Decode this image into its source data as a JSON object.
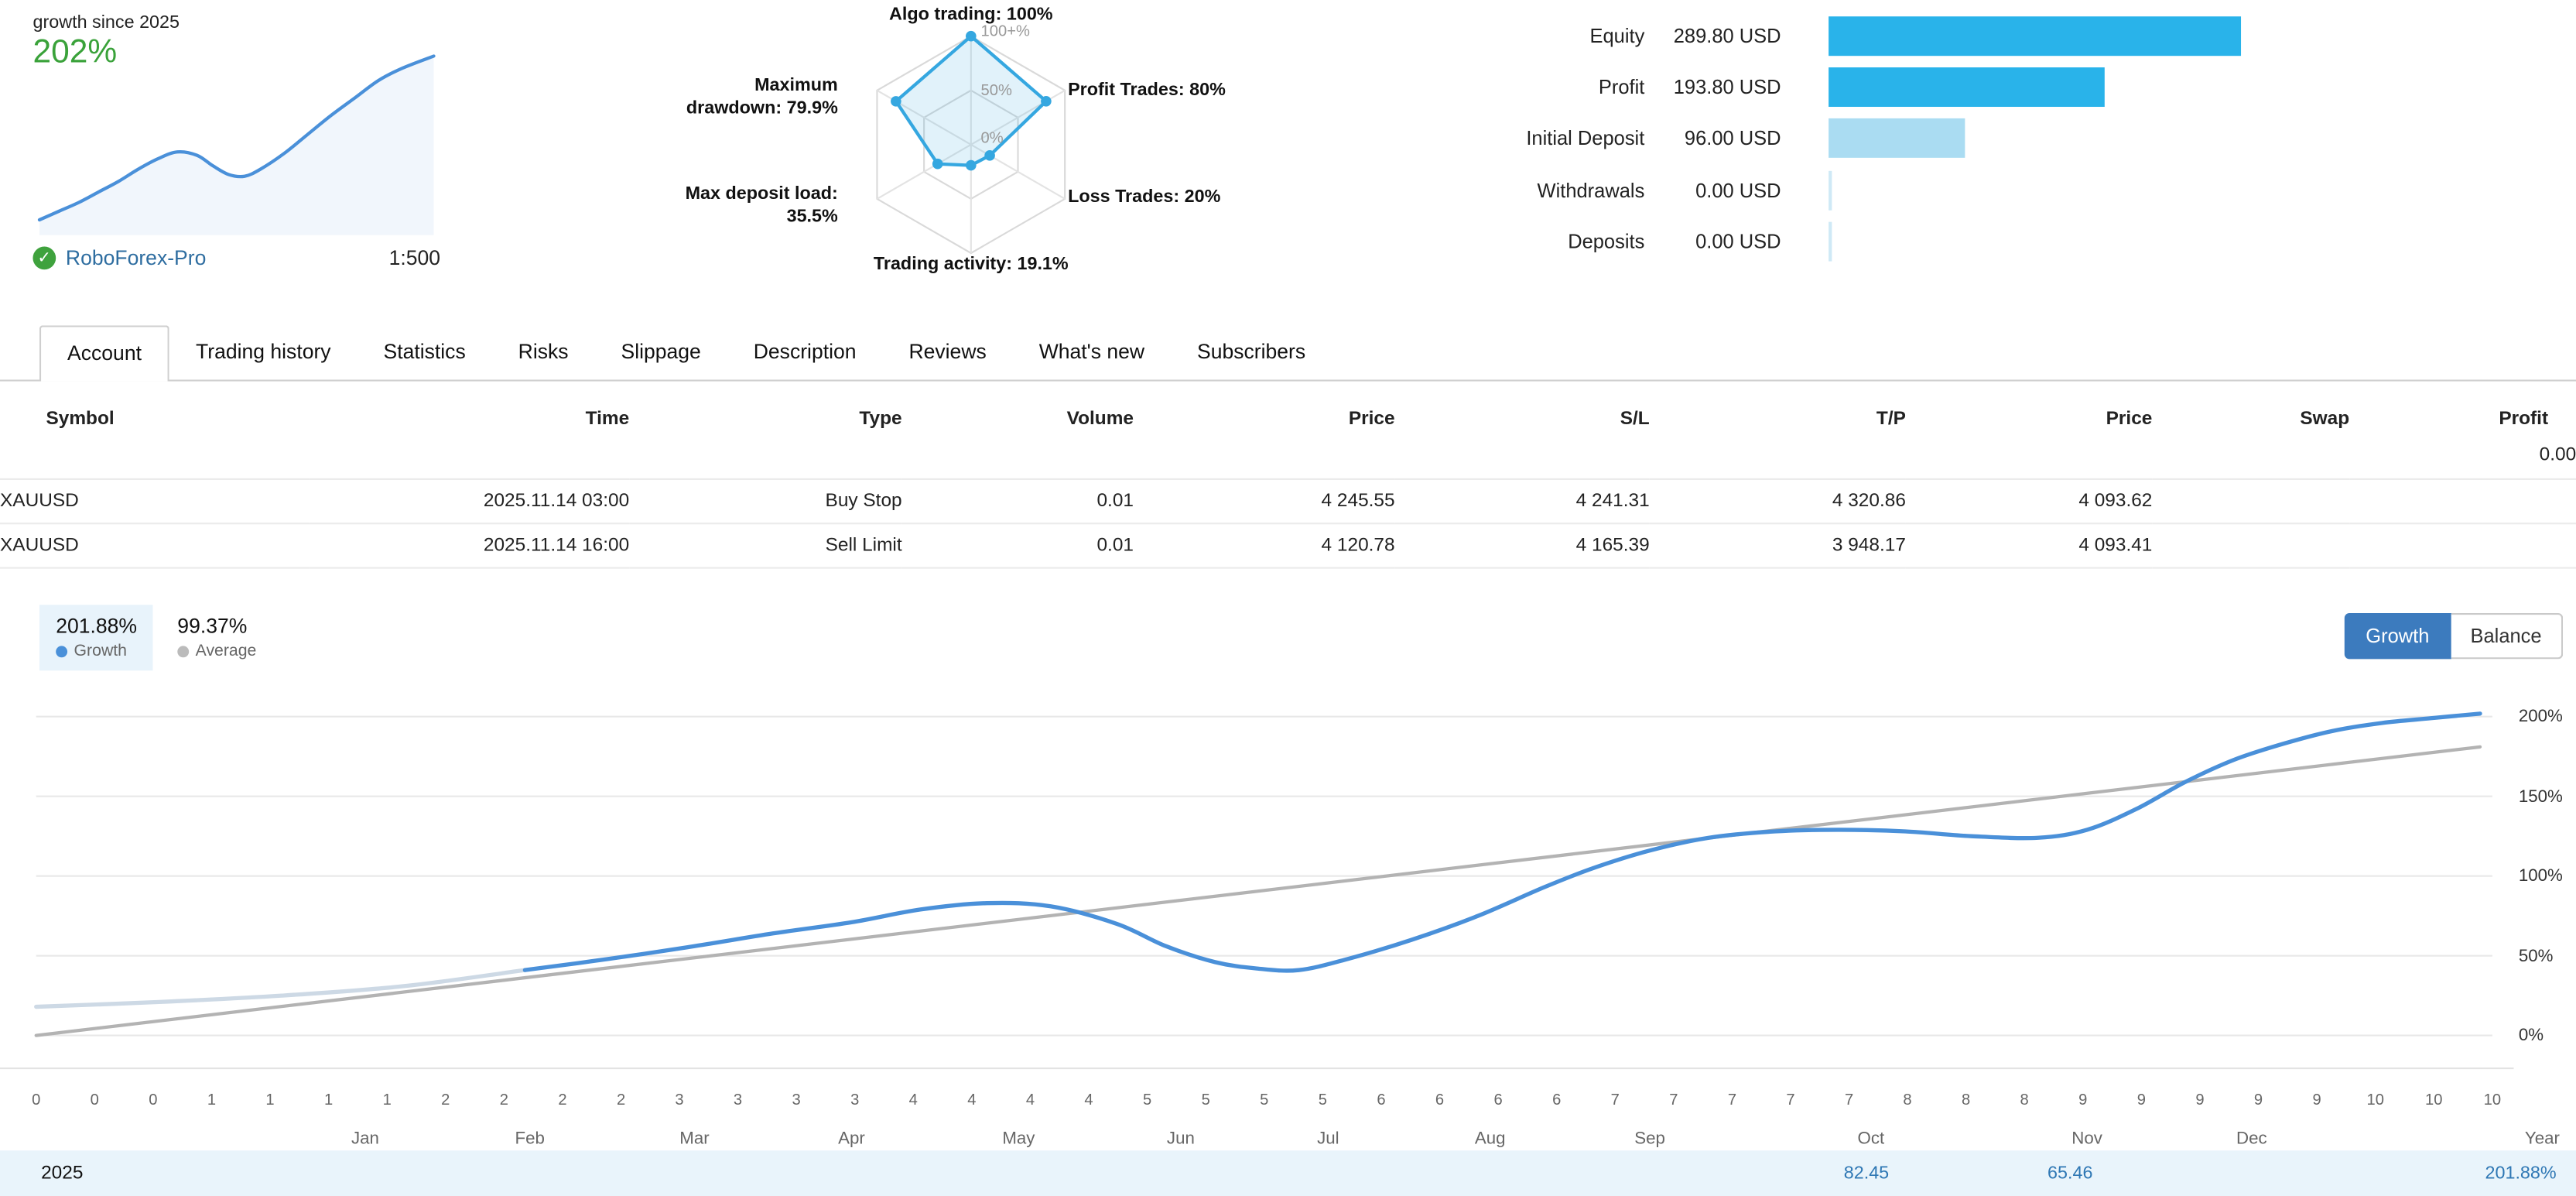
{
  "header": {
    "growth_label": "growth since 2025",
    "growth_value": "202%",
    "broker": "RoboForex-Pro",
    "leverage": "1:500"
  },
  "radar": {
    "rings": [
      "100+%",
      "50%",
      "0%"
    ],
    "axes": [
      {
        "label": "Algo trading: 100%",
        "value": 100
      },
      {
        "label": "Profit Trades: 80%",
        "value": 80
      },
      {
        "label": "Loss Trades: 20%",
        "value": 20
      },
      {
        "label": "Trading activity: 19.1%",
        "value": 19.1
      },
      {
        "label": "Max deposit load: 35.5%",
        "value": 35.5
      },
      {
        "label": "Maximum drawdown: 79.9%",
        "value": 79.9
      }
    ]
  },
  "stats": {
    "max_value": 289.8,
    "rows": [
      {
        "label": "Equity",
        "value": "289.80 USD",
        "num": 289.8,
        "bar": "strong"
      },
      {
        "label": "Profit",
        "value": "193.80 USD",
        "num": 193.8,
        "bar": "strong"
      },
      {
        "label": "Initial Deposit",
        "value": "96.00 USD",
        "num": 96.0,
        "bar": "light"
      },
      {
        "label": "Withdrawals",
        "value": "0.00 USD",
        "num": 0,
        "bar": "none"
      },
      {
        "label": "Deposits",
        "value": "0.00 USD",
        "num": 0,
        "bar": "none"
      }
    ]
  },
  "tabs": [
    {
      "label": "Account",
      "active": true
    },
    {
      "label": "Trading history",
      "active": false
    },
    {
      "label": "Statistics",
      "active": false
    },
    {
      "label": "Risks",
      "active": false
    },
    {
      "label": "Slippage",
      "active": false
    },
    {
      "label": "Description",
      "active": false
    },
    {
      "label": "Reviews",
      "active": false
    },
    {
      "label": "What's new",
      "active": false
    },
    {
      "label": "Subscribers",
      "active": false
    }
  ],
  "orders_table": {
    "columns": [
      "Symbol",
      "Time",
      "Type",
      "Volume",
      "Price",
      "S/L",
      "T/P",
      "Price",
      "Swap",
      "Profit"
    ],
    "summary_profit": "0.00",
    "rows": [
      [
        "XAUUSD",
        "2025.11.14 03:00",
        "Buy Stop",
        "0.01",
        "4 245.55",
        "4 241.31",
        "4 320.86",
        "4 093.62",
        "",
        ""
      ],
      [
        "XAUUSD",
        "2025.11.14 16:00",
        "Sell Limit",
        "0.01",
        "4 120.78",
        "4 165.39",
        "3 948.17",
        "4 093.41",
        "",
        ""
      ]
    ]
  },
  "chart_header": {
    "growth_value": "201.88%",
    "growth_label": "Growth",
    "average_value": "99.37%",
    "average_label": "Average",
    "buttons": [
      "Growth",
      "Balance"
    ]
  },
  "chart_footer": {
    "year": "2025",
    "values": [
      "82.45",
      "65.46"
    ],
    "total": "201.88%"
  },
  "colors": {
    "growth_green": "#3aa23a",
    "bar_blue": "#29b3ea",
    "bar_light_blue": "#aadcf2",
    "radar_blue": "#35a7e0",
    "chart_blue": "#4a90d9",
    "average_gray": "#b3b3b3",
    "button_blue": "#3c7bbe",
    "footer_bg": "#e9f4fb",
    "link_blue": "#2e6da0"
  },
  "chart_data": [
    {
      "type": "line",
      "name": "growth-sparkline",
      "title": "growth since 2025",
      "color": "#4a90d9",
      "points": [
        [
          0,
          4
        ],
        [
          0.05,
          9
        ],
        [
          0.1,
          14
        ],
        [
          0.15,
          20
        ],
        [
          0.2,
          26
        ],
        [
          0.25,
          33
        ],
        [
          0.3,
          39
        ],
        [
          0.35,
          43
        ],
        [
          0.4,
          41
        ],
        [
          0.44,
          35
        ],
        [
          0.48,
          30
        ],
        [
          0.52,
          29
        ],
        [
          0.56,
          33
        ],
        [
          0.62,
          42
        ],
        [
          0.68,
          53
        ],
        [
          0.74,
          64
        ],
        [
          0.8,
          74
        ],
        [
          0.86,
          84
        ],
        [
          0.92,
          91
        ],
        [
          1.0,
          98
        ]
      ]
    },
    {
      "type": "radar",
      "name": "trading-quality",
      "axes": [
        "Algo trading",
        "Profit Trades",
        "Loss Trades",
        "Trading activity",
        "Max deposit load",
        "Maximum drawdown"
      ],
      "values": [
        100,
        80,
        20,
        19.1,
        35.5,
        79.9
      ],
      "rings": [
        0,
        50,
        100
      ]
    },
    {
      "type": "bar",
      "name": "account-summary",
      "categories": [
        "Equity",
        "Profit",
        "Initial Deposit",
        "Withdrawals",
        "Deposits"
      ],
      "values": [
        289.8,
        193.8,
        96.0,
        0,
        0
      ],
      "unit": "USD"
    },
    {
      "type": "line",
      "name": "growth-chart",
      "title": "Growth",
      "ylabel": "%",
      "ylim": [
        -18,
        216
      ],
      "yticks": [
        0,
        50,
        100,
        150,
        200
      ],
      "legend_position": "top-left",
      "grid": true,
      "series": [
        {
          "name": "pre-subscription",
          "color": "#cdd9e5",
          "width": 2.5,
          "points": [
            [
              0,
              18
            ],
            [
              0.05,
              21
            ],
            [
              0.1,
              25
            ],
            [
              0.15,
              31
            ],
            [
              0.199,
              41
            ]
          ]
        },
        {
          "name": "Average",
          "color": "#b3b3b3",
          "width": 2,
          "points": [
            [
              0,
              0
            ],
            [
              0.995,
              181
            ]
          ]
        },
        {
          "name": "Growth",
          "color": "#4a90d9",
          "width": 2.5,
          "points": [
            [
              0.199,
              41
            ],
            [
              0.233,
              48
            ],
            [
              0.268,
              56
            ],
            [
              0.3,
              64
            ],
            [
              0.332,
              71
            ],
            [
              0.36,
              79
            ],
            [
              0.387,
              83
            ],
            [
              0.413,
              81
            ],
            [
              0.44,
              70
            ],
            [
              0.46,
              56
            ],
            [
              0.48,
              46
            ],
            [
              0.497,
              42
            ],
            [
              0.514,
              41
            ],
            [
              0.534,
              48
            ],
            [
              0.56,
              60
            ],
            [
              0.587,
              75
            ],
            [
              0.614,
              93
            ],
            [
              0.634,
              105
            ],
            [
              0.657,
              116
            ],
            [
              0.681,
              124
            ],
            [
              0.708,
              128
            ],
            [
              0.734,
              129
            ],
            [
              0.761,
              128
            ],
            [
              0.788,
              125
            ],
            [
              0.815,
              124
            ],
            [
              0.835,
              129
            ],
            [
              0.855,
              142
            ],
            [
              0.875,
              159
            ],
            [
              0.895,
              173
            ],
            [
              0.915,
              183
            ],
            [
              0.935,
              191
            ],
            [
              0.955,
              196
            ],
            [
              0.975,
              199
            ],
            [
              0.995,
              201.88
            ]
          ]
        }
      ],
      "x_tick_labels": [
        "0",
        "0",
        "0",
        "1",
        "1",
        "1",
        "1",
        "2",
        "2",
        "2",
        "2",
        "3",
        "3",
        "3",
        "3",
        "4",
        "4",
        "4",
        "4",
        "5",
        "5",
        "5",
        "5",
        "6",
        "6",
        "6",
        "6",
        "7",
        "7",
        "7",
        "7",
        "7",
        "8",
        "8",
        "8",
        "9",
        "9",
        "9",
        "9",
        "9",
        "10",
        "10",
        "10"
      ],
      "month_labels": [
        "Jan",
        "Feb",
        "Mar",
        "Apr",
        "May",
        "Jun",
        "Jul",
        "Aug",
        "Sep",
        "Oct",
        "Nov",
        "Dec"
      ],
      "month_positions": [
        0.134,
        0.201,
        0.268,
        0.332,
        0.4,
        0.466,
        0.526,
        0.592,
        0.657,
        0.747,
        0.835,
        0.902
      ],
      "axis_end_label": "Year"
    }
  ]
}
